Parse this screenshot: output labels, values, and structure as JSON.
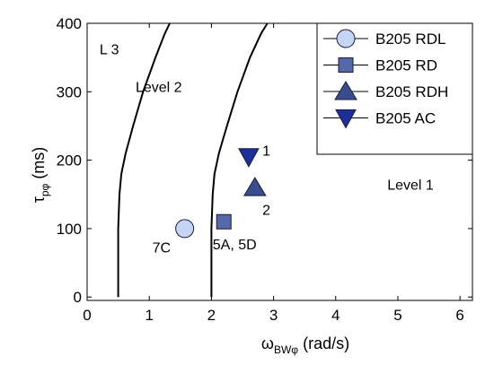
{
  "chart_data": {
    "type": "scatter",
    "title": "",
    "xlabel": {
      "main": "ω",
      "sub": "BWφ",
      "unit": " (rad/s)"
    },
    "ylabel": {
      "main": "τ",
      "sub": "pφ",
      "unit": " (ms)"
    },
    "xlim": [
      0,
      6.2
    ],
    "ylim": [
      -5,
      400
    ],
    "xticks": [
      0,
      1,
      2,
      3,
      4,
      5,
      6
    ],
    "yticks": [
      0,
      100,
      200,
      300,
      400
    ],
    "grid": false,
    "legend_position": "top-right",
    "series": [
      {
        "name": "B205 RDL",
        "marker": "circle",
        "color": "#c5d5f5",
        "points": [
          {
            "x": 1.57,
            "y": 100
          }
        ]
      },
      {
        "name": "B205 RD",
        "marker": "square",
        "color": "#5568a8",
        "points": [
          {
            "x": 2.2,
            "y": 110
          }
        ]
      },
      {
        "name": "B205 RDH",
        "marker": "triangle-up",
        "color": "#374d8e",
        "points": [
          {
            "x": 2.7,
            "y": 160
          }
        ]
      },
      {
        "name": "B205 AC",
        "marker": "triangle-down",
        "color": "#1c2f9a",
        "points": [
          {
            "x": 2.6,
            "y": 205
          }
        ]
      }
    ],
    "boundaries": [
      {
        "id": "boundary-l3-l2",
        "points": [
          [
            0.5,
            0
          ],
          [
            0.5,
            50
          ],
          [
            0.5,
            100
          ],
          [
            0.52,
            150
          ],
          [
            0.55,
            180
          ],
          [
            0.62,
            210
          ],
          [
            0.74,
            250
          ],
          [
            0.9,
            300
          ],
          [
            1.1,
            350
          ],
          [
            1.25,
            385
          ],
          [
            1.33,
            400
          ]
        ]
      },
      {
        "id": "boundary-l2-l1",
        "points": [
          [
            2.0,
            0
          ],
          [
            2.0,
            50
          ],
          [
            2.0,
            100
          ],
          [
            2.02,
            150
          ],
          [
            2.05,
            180
          ],
          [
            2.12,
            210
          ],
          [
            2.25,
            250
          ],
          [
            2.42,
            300
          ],
          [
            2.62,
            350
          ],
          [
            2.8,
            385
          ],
          [
            2.9,
            400
          ]
        ]
      }
    ],
    "annotations": [
      {
        "text": "L 3",
        "x": 0.2,
        "y": 355
      },
      {
        "text": "Level 2",
        "x": 0.78,
        "y": 300
      },
      {
        "text": "Level 1",
        "x": 4.83,
        "y": 157
      },
      {
        "text": "1",
        "x": 2.82,
        "y": 207
      },
      {
        "text": "2",
        "x": 2.82,
        "y": 120
      },
      {
        "text": "7C",
        "x": 1.05,
        "y": 65
      },
      {
        "text": "5A, 5D",
        "x": 2.02,
        "y": 70
      }
    ]
  }
}
